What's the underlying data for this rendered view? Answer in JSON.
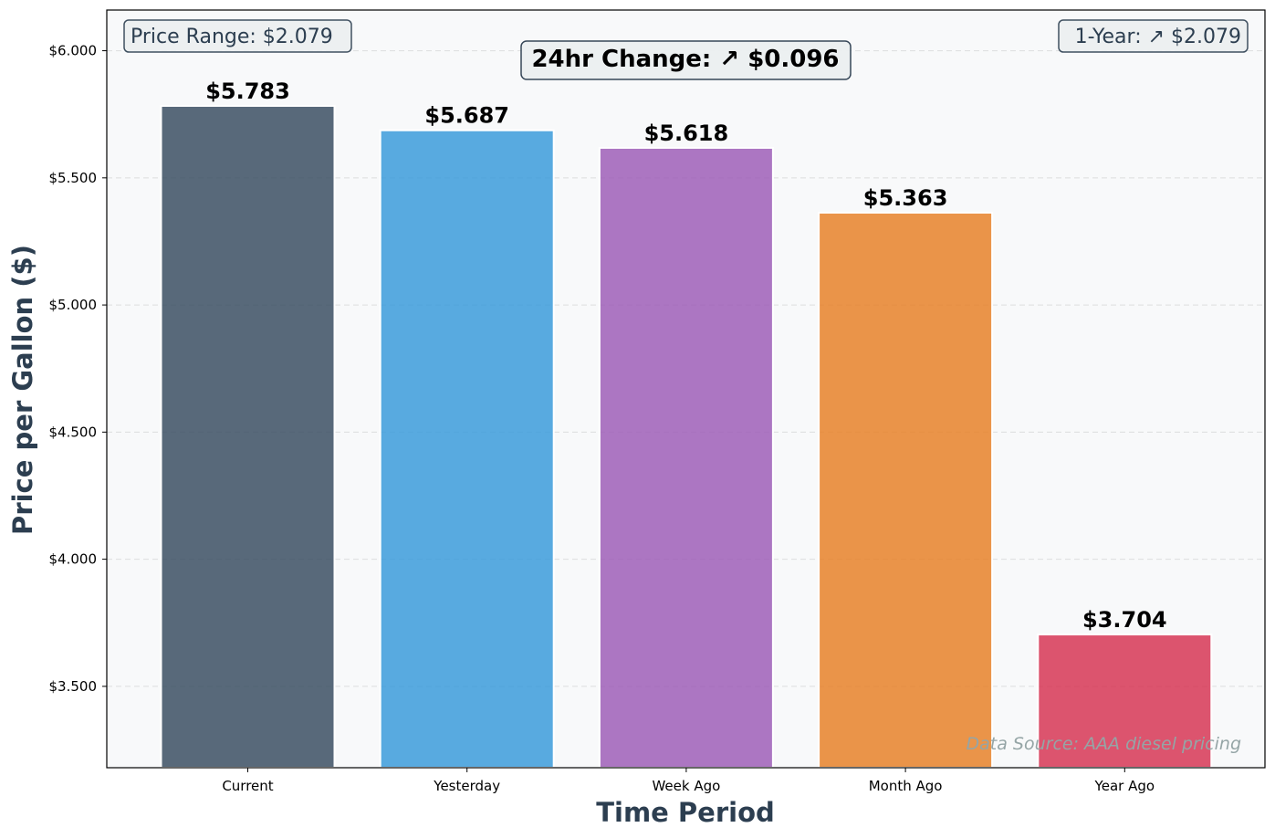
{
  "chart_data": {
    "type": "bar",
    "categories": [
      "Current",
      "Yesterday",
      "Week Ago",
      "Month Ago",
      "Year Ago"
    ],
    "values": [
      5.783,
      5.687,
      5.618,
      5.363,
      3.704
    ],
    "value_labels": [
      "$5.783",
      "$5.687",
      "$5.618",
      "$5.363",
      "$3.704"
    ],
    "colors": [
      "#34495e",
      "#3498db",
      "#9b59b6",
      "#e67e22",
      "#d6304f"
    ],
    "xlabel": "Time Period",
    "ylabel": "Price per Gallon ($)",
    "ylim": [
      3.18,
      6.16
    ],
    "yticks": [
      3.5,
      4.0,
      4.5,
      5.0,
      5.5,
      6.0
    ],
    "ytick_labels": [
      "$3.500",
      "$4.000",
      "$4.500",
      "$5.000",
      "$5.500",
      "$6.000"
    ],
    "grid": true,
    "annotations": {
      "price_range": "Price Range: $2.079",
      "change_24hr": "24hr Change: ↗ $0.096",
      "one_year": "1-Year: ↗ $2.079",
      "source": "Data Source: AAA diesel pricing"
    }
  }
}
